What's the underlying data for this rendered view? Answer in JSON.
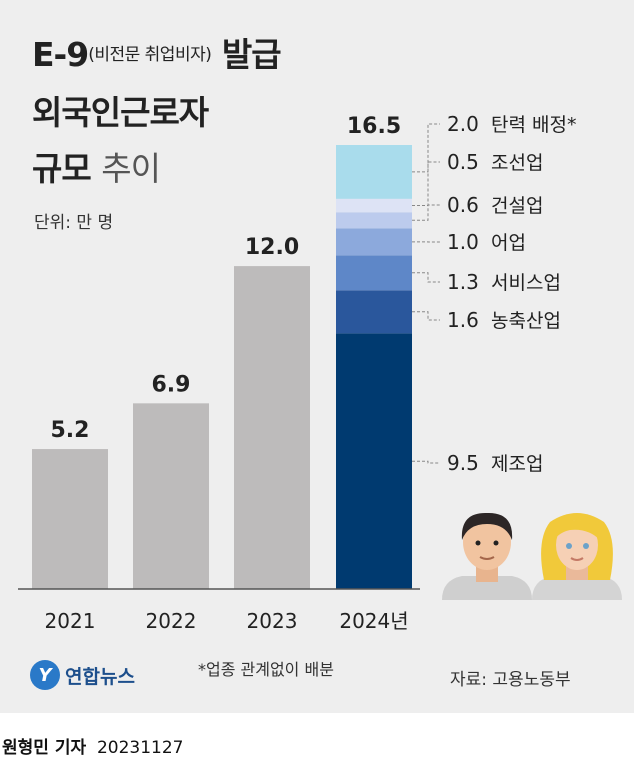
{
  "title": {
    "line1_main": "E-9",
    "line1_sub": "(비전문 취업비자)",
    "line1_end": "발급",
    "line2": "외국인근로자",
    "line3_bold": "규모",
    "line3_light": "추이"
  },
  "unit": "단위: 만 명",
  "footnote": "*업종 관계없이 배분",
  "source": "자료: 고용노동부",
  "logo_text": "연합뉴스",
  "logo_mark": "Y",
  "credit": {
    "name": "원형민 기자",
    "date": "20231127"
  },
  "colors": {
    "bar_gray": "#bdbbbb",
    "stack": [
      "#003a70",
      "#2a579c",
      "#5e87c8",
      "#8ca9dc",
      "#bccbed",
      "#dde3f5",
      "#a9dcec"
    ]
  },
  "chart_data": {
    "type": "bar",
    "categories": [
      "2021",
      "2022",
      "2023",
      "2024년"
    ],
    "values": [
      5.2,
      6.9,
      12.0,
      16.5
    ],
    "value_labels": [
      "5.2",
      "6.9",
      "12.0",
      "16.5"
    ],
    "stacked_2024": [
      {
        "name": "제조업",
        "value": 9.5,
        "label": "9.5"
      },
      {
        "name": "농축산업",
        "value": 1.6,
        "label": "1.6"
      },
      {
        "name": "서비스업",
        "value": 1.3,
        "label": "1.3"
      },
      {
        "name": "어업",
        "value": 1.0,
        "label": "1.0"
      },
      {
        "name": "건설업",
        "value": 0.6,
        "label": "0.6"
      },
      {
        "name": "조선업",
        "value": 0.5,
        "label": "0.5"
      },
      {
        "name": "탄력 배정*",
        "value": 2.0,
        "label": "2.0"
      }
    ],
    "ylim": [
      0,
      16.5
    ],
    "grid": false,
    "legend": "right"
  }
}
